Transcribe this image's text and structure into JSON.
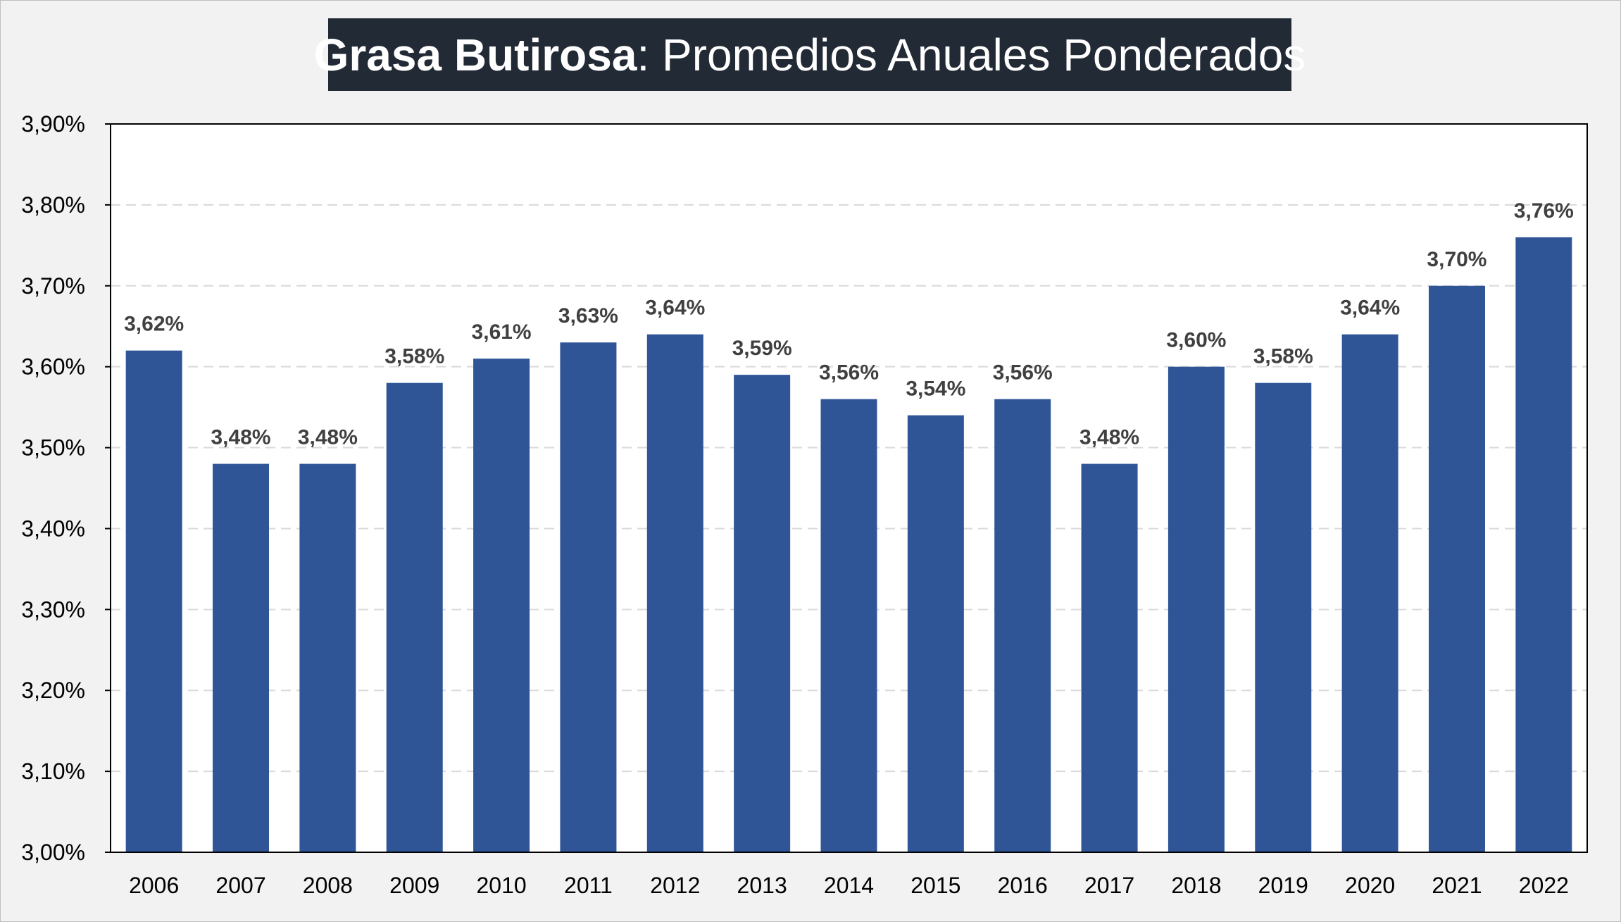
{
  "chart_data": {
    "type": "bar",
    "title_bold": "Grasa Butirosa",
    "title_rest": ": Promedios Anuales Ponderados",
    "xlabel": "",
    "ylabel": "",
    "categories": [
      "2006",
      "2007",
      "2008",
      "2009",
      "2010",
      "2011",
      "2012",
      "2013",
      "2014",
      "2015",
      "2016",
      "2017",
      "2018",
      "2019",
      "2020",
      "2021",
      "2022"
    ],
    "values": [
      3.62,
      3.48,
      3.48,
      3.58,
      3.61,
      3.63,
      3.64,
      3.59,
      3.56,
      3.54,
      3.56,
      3.48,
      3.6,
      3.58,
      3.64,
      3.7,
      3.76
    ],
    "data_labels": [
      "3,62%",
      "3,48%",
      "3,48%",
      "3,58%",
      "3,61%",
      "3,63%",
      "3,64%",
      "3,59%",
      "3,56%",
      "3,54%",
      "3,56%",
      "3,48%",
      "3,60%",
      "3,58%",
      "3,64%",
      "3,70%",
      "3,76%"
    ],
    "yticks": [
      3.0,
      3.1,
      3.2,
      3.3,
      3.4,
      3.5,
      3.6,
      3.7,
      3.8,
      3.9
    ],
    "ytick_labels": [
      "3,00%",
      "3,10%",
      "3,20%",
      "3,30%",
      "3,40%",
      "3,50%",
      "3,60%",
      "3,70%",
      "3,80%",
      "3,90%"
    ],
    "ylim": [
      3.0,
      3.9
    ],
    "grid": true,
    "legend": "none",
    "colors": {
      "bar": "#2f5597",
      "title_bg": "#222a35",
      "title_text": "#ffffff",
      "data_label": "#404040",
      "grid": "#d9d9d9",
      "plot_bg": "#ffffff",
      "page_bg": "#f2f2f2"
    }
  }
}
